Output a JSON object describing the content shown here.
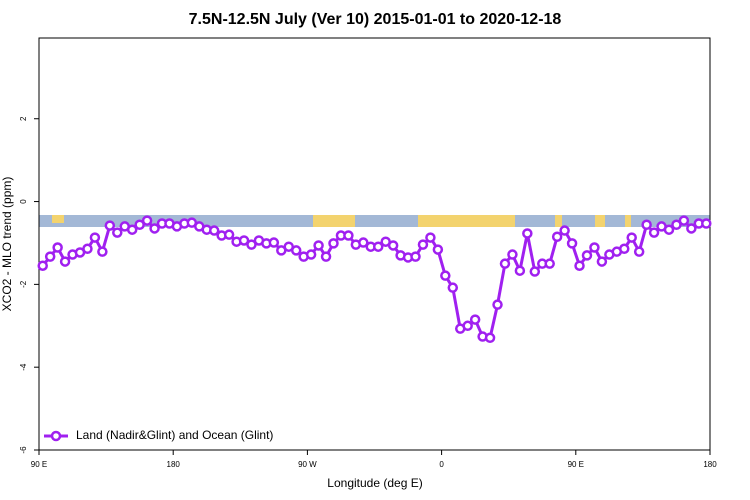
{
  "chart_data": {
    "type": "line",
    "title": "7.5N-12.5N July (Ver 10)   2015-01-01 to 2020-12-18",
    "x_label": "Longitude (deg E)",
    "y_label": "XCO2 - MLO trend (ppm)",
    "xlim": [
      90,
      540
    ],
    "xticks": [
      {
        "value": 90,
        "label": "90 E"
      },
      {
        "value": 180,
        "label": "180"
      },
      {
        "value": 270,
        "label": "90 W"
      },
      {
        "value": 360,
        "label": "0"
      },
      {
        "value": 450,
        "label": "90 E"
      },
      {
        "value": 540,
        "label": "180"
      }
    ],
    "ylim": [
      -6,
      3.95
    ],
    "yticks": [
      -6,
      -4,
      -2,
      0,
      2
    ],
    "legend": "bottom-left",
    "x": [
      92.5,
      97.5,
      102.5,
      107.5,
      112.5,
      117.5,
      122.5,
      127.5,
      132.5,
      137.5,
      142.5,
      147.5,
      152.5,
      157.5,
      162.5,
      167.5,
      172.5,
      177.5,
      182.5,
      187.5,
      192.5,
      197.5,
      202.5,
      207.5,
      212.5,
      217.5,
      222.5,
      227.5,
      232.5,
      237.5,
      242.5,
      247.5,
      252.5,
      257.5,
      262.5,
      267.5,
      272.5,
      277.5,
      282.5,
      287.5,
      292.5,
      297.5,
      302.5,
      307.5,
      312.5,
      317.5,
      322.5,
      327.5,
      332.5,
      337.5,
      342.5,
      347.5,
      352.5,
      357.5,
      362.5,
      367.5,
      372.5,
      377.5,
      382.5,
      387.5,
      392.5,
      397.5,
      402.5,
      407.5,
      412.5,
      417.5,
      422.5,
      427.5,
      432.5,
      437.5,
      442.5,
      447.5,
      452.5,
      457.5,
      462.5,
      467.5,
      472.5,
      477.5,
      482.5,
      487.5,
      492.5,
      497.5,
      502.5,
      507.5,
      512.5,
      517.5,
      522.5,
      527.5,
      532.5,
      537.5
    ],
    "series": [
      {
        "name": "Land (Nadir&Glint) and Ocean (Glint)",
        "color": "#a020f0",
        "values": [
          -1.55,
          -1.33,
          -1.11,
          -1.45,
          -1.28,
          -1.23,
          -1.14,
          -0.87,
          -1.21,
          -0.58,
          -0.75,
          -0.6,
          -0.68,
          -0.56,
          -0.46,
          -0.65,
          -0.53,
          -0.53,
          -0.6,
          -0.53,
          -0.51,
          -0.6,
          -0.68,
          -0.7,
          -0.82,
          -0.8,
          -0.97,
          -0.94,
          -1.04,
          -0.94,
          -1.01,
          -0.99,
          -1.18,
          -1.09,
          -1.18,
          -1.33,
          -1.28,
          -1.06,
          -1.33,
          -1.01,
          -0.82,
          -0.82,
          -1.04,
          -0.99,
          -1.09,
          -1.09,
          -0.97,
          -1.06,
          -1.3,
          -1.35,
          -1.33,
          -1.04,
          -0.87,
          -1.16,
          -1.79,
          -2.08,
          -3.07,
          -3.0,
          -2.85,
          -3.26,
          -3.29,
          -2.49,
          -1.5,
          -1.28,
          -1.67,
          -0.77,
          -1.69,
          -1.5,
          -1.5,
          -0.85,
          -0.7,
          -1.01,
          -1.55,
          -1.3,
          -1.11,
          -1.45,
          -1.28,
          -1.21,
          -1.14,
          -0.87,
          -1.21,
          -0.56,
          -0.75,
          -0.6,
          -0.68,
          -0.56,
          -0.46,
          -0.65,
          -0.53,
          -0.53
        ]
      }
    ]
  }
}
